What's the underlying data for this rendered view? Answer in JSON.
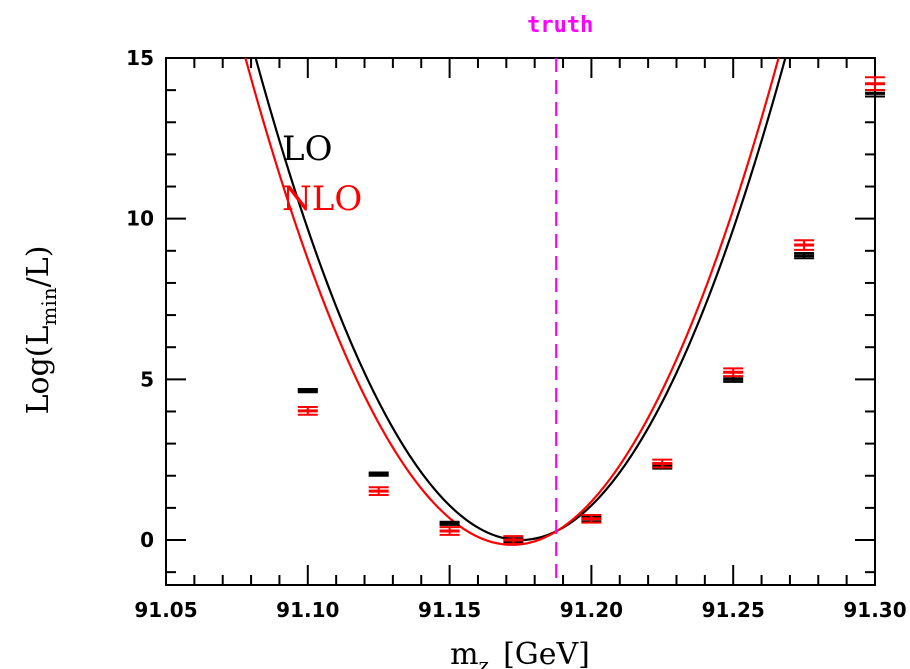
{
  "chart_data": {
    "type": "scatter",
    "title": "",
    "xlabel": "m",
    "xlabel_sub": "z",
    "xlabel_unit": "[GeV]",
    "ylabel_pre": "Log(L",
    "ylabel_sub": "min",
    "ylabel_post": "/L)",
    "xlim": [
      91.05,
      91.3
    ],
    "ylim": [
      -1.4,
      15
    ],
    "x_ticks": [
      91.05,
      91.1,
      91.15,
      91.2,
      91.25,
      91.3
    ],
    "x_tick_labels": [
      "91.05",
      "91.10",
      "91.15",
      "91.20",
      "91.25",
      "91.30"
    ],
    "y_ticks": [
      0,
      5,
      10,
      15
    ],
    "y_tick_labels": [
      "0",
      "5",
      "10",
      "15"
    ],
    "grid": false,
    "legend_position": "top-left",
    "series": [
      {
        "name": "LO",
        "color": "#000000",
        "x": [
          91.1,
          91.125,
          91.15,
          91.1725,
          91.2,
          91.225,
          91.25,
          91.275,
          91.3
        ],
        "y": [
          4.65,
          2.05,
          0.52,
          0.02,
          0.65,
          2.3,
          5.0,
          8.85,
          13.9
        ],
        "err": [
          0.05,
          0.05,
          0.05,
          0.08,
          0.08,
          0.08,
          0.08,
          0.08,
          0.1
        ],
        "fit_min_x": 91.175,
        "fit_curvature": 1720
      },
      {
        "name": "NLO",
        "color": "#ff0000",
        "x": [
          91.1,
          91.125,
          91.15,
          91.1725,
          91.2,
          91.225,
          91.25,
          91.275,
          91.3
        ],
        "y": [
          4.02,
          1.52,
          0.28,
          0.0,
          0.66,
          2.38,
          5.22,
          9.18,
          14.2
        ],
        "err": [
          0.12,
          0.12,
          0.12,
          0.12,
          0.12,
          0.12,
          0.12,
          0.15,
          0.2
        ],
        "fit_min_x": 91.172,
        "fit_curvature": 1715,
        "fit_min_y": -0.15
      }
    ],
    "annotations": [
      {
        "label": "truth",
        "x": 91.1876,
        "color": "#ff00ff",
        "style": "dashed"
      }
    ]
  }
}
